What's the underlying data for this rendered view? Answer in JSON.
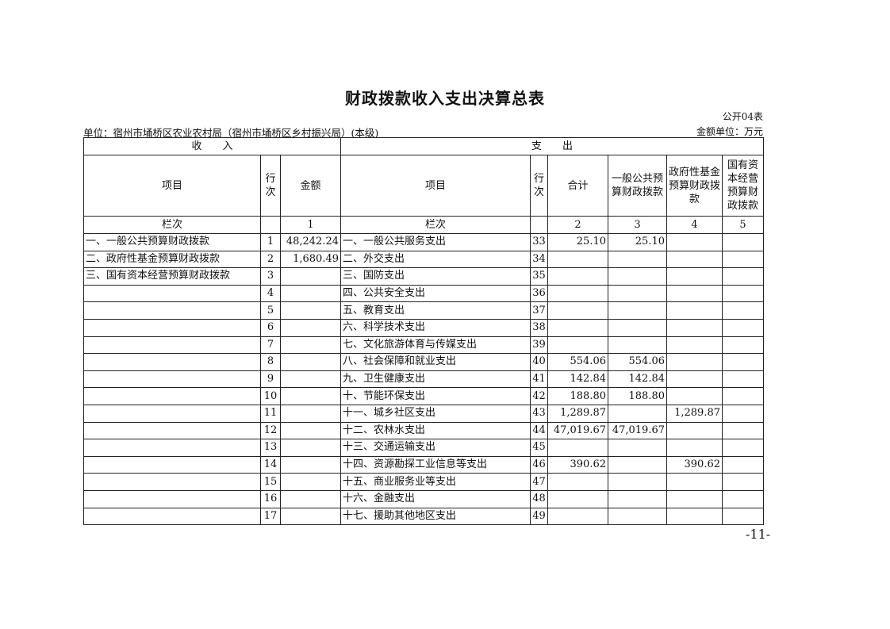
{
  "title": "财政拨款收入支出决算总表",
  "table_code": "公开04表",
  "unit": "单位：宿州市埇桥区农业农村局（宿州市埇桥区乡村振兴局）(本级)",
  "money_unit": "金额单位：万元",
  "section_income": "收　　入",
  "section_expense": "支　　出",
  "headers": {
    "income_item": "项目",
    "income_row": "行次",
    "income_amount": "金额",
    "expense_item": "项目",
    "expense_row": "行次",
    "total": "合计",
    "general": "一般公共预算财政拨款",
    "fund": "政府性基金预算财政拨款",
    "state": "国有资本经营预算财政拨款"
  },
  "column_row": {
    "income_label": "栏次",
    "income_amount": "1",
    "expense_label": "栏次",
    "total": "2",
    "general": "3",
    "fund": "4",
    "state": "5"
  },
  "rows": [
    {
      "income_item": "一、一般公共预算财政拨款",
      "income_row": "1",
      "income_amount": "48,242.24",
      "expense_item": "一、一般公共服务支出",
      "expense_row": "33",
      "total": "25.10",
      "general": "25.10",
      "fund": "",
      "state": ""
    },
    {
      "income_item": "二、政府性基金预算财政拨款",
      "income_row": "2",
      "income_amount": "1,680.49",
      "expense_item": "二、外交支出",
      "expense_row": "34",
      "total": "",
      "general": "",
      "fund": "",
      "state": ""
    },
    {
      "income_item": "三、国有资本经营预算财政拨款",
      "income_row": "3",
      "income_amount": "",
      "expense_item": "三、国防支出",
      "expense_row": "35",
      "total": "",
      "general": "",
      "fund": "",
      "state": ""
    },
    {
      "income_item": "",
      "income_row": "4",
      "income_amount": "",
      "expense_item": "四、公共安全支出",
      "expense_row": "36",
      "total": "",
      "general": "",
      "fund": "",
      "state": ""
    },
    {
      "income_item": "",
      "income_row": "5",
      "income_amount": "",
      "expense_item": "五、教育支出",
      "expense_row": "37",
      "total": "",
      "general": "",
      "fund": "",
      "state": ""
    },
    {
      "income_item": "",
      "income_row": "6",
      "income_amount": "",
      "expense_item": "六、科学技术支出",
      "expense_row": "38",
      "total": "",
      "general": "",
      "fund": "",
      "state": ""
    },
    {
      "income_item": "",
      "income_row": "7",
      "income_amount": "",
      "expense_item": "七、文化旅游体育与传媒支出",
      "expense_row": "39",
      "total": "",
      "general": "",
      "fund": "",
      "state": ""
    },
    {
      "income_item": "",
      "income_row": "8",
      "income_amount": "",
      "expense_item": "八、社会保障和就业支出",
      "expense_row": "40",
      "total": "554.06",
      "general": "554.06",
      "fund": "",
      "state": ""
    },
    {
      "income_item": "",
      "income_row": "9",
      "income_amount": "",
      "expense_item": "九、卫生健康支出",
      "expense_row": "41",
      "total": "142.84",
      "general": "142.84",
      "fund": "",
      "state": ""
    },
    {
      "income_item": "",
      "income_row": "10",
      "income_amount": "",
      "expense_item": "十、节能环保支出",
      "expense_row": "42",
      "total": "188.80",
      "general": "188.80",
      "fund": "",
      "state": ""
    },
    {
      "income_item": "",
      "income_row": "11",
      "income_amount": "",
      "expense_item": "十一、城乡社区支出",
      "expense_row": "43",
      "total": "1,289.87",
      "general": "",
      "fund": "1,289.87",
      "state": ""
    },
    {
      "income_item": "",
      "income_row": "12",
      "income_amount": "",
      "expense_item": "十二、农林水支出",
      "expense_row": "44",
      "total": "47,019.67",
      "general": "47,019.67",
      "fund": "",
      "state": ""
    },
    {
      "income_item": "",
      "income_row": "13",
      "income_amount": "",
      "expense_item": "十三、交通运输支出",
      "expense_row": "45",
      "total": "",
      "general": "",
      "fund": "",
      "state": ""
    },
    {
      "income_item": "",
      "income_row": "14",
      "income_amount": "",
      "expense_item": "十四、资源勘探工业信息等支出",
      "expense_row": "46",
      "total": "390.62",
      "general": "",
      "fund": "390.62",
      "state": ""
    },
    {
      "income_item": "",
      "income_row": "15",
      "income_amount": "",
      "expense_item": "十五、商业服务业等支出",
      "expense_row": "47",
      "total": "",
      "general": "",
      "fund": "",
      "state": ""
    },
    {
      "income_item": "",
      "income_row": "16",
      "income_amount": "",
      "expense_item": "十六、金融支出",
      "expense_row": "48",
      "total": "",
      "general": "",
      "fund": "",
      "state": ""
    },
    {
      "income_item": "",
      "income_row": "17",
      "income_amount": "",
      "expense_item": "十七、援助其他地区支出",
      "expense_row": "49",
      "total": "",
      "general": "",
      "fund": "",
      "state": ""
    }
  ],
  "page_number": "-11-"
}
